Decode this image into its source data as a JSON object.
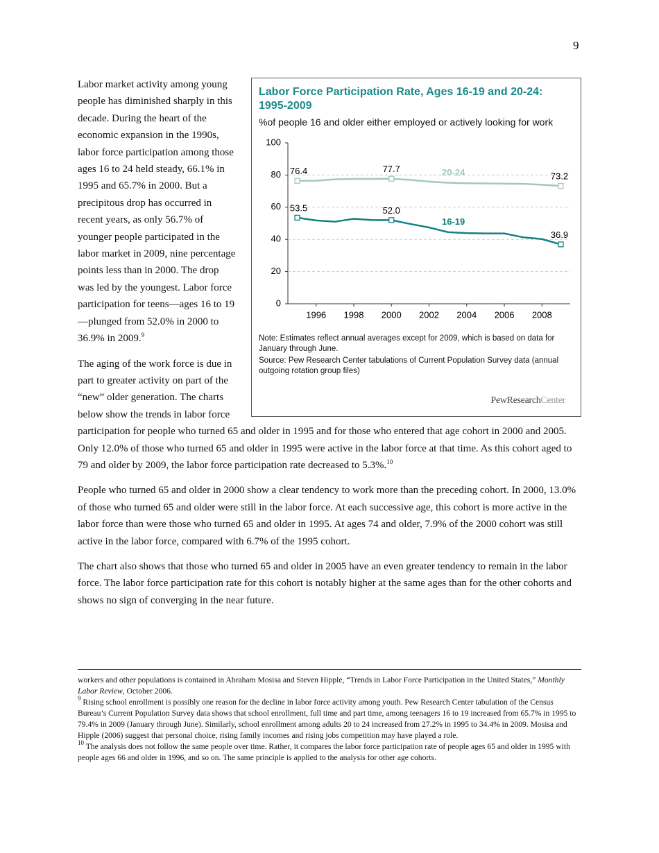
{
  "page_number": "9",
  "paragraphs": [
    {
      "text": "Labor market activity among young people has diminished sharply in this decade. During the heart of the economic expansion in the 1990s, labor force participation among those ages 16 to 24 held steady, 66.1% in 1995 and 65.7% in 2000. But a precipitous drop has occurred in recent years, as only 56.7% of younger people participated in the labor market in 2009, nine percentage points less than in 2000. The drop was led by the youngest. Labor force participation for teens—ages 16 to 19—plunged from 52.0% in 2000 to 36.9% in 2009.",
      "note": "9"
    },
    {
      "text": "The aging of the work force is due in part to greater activity on part of the “new” older generation. The charts below show the trends in labor force participation for people who turned 65 and older in 1995 and for those who entered that age cohort in 2000 and 2005. Only 12.0% of those who turned 65 and older in 1995 were active in the labor force at that time. As this cohort aged to 79 and older by 2009, the labor force participation rate decreased to 5.3%.",
      "note": "10"
    },
    {
      "text": "People who turned 65 and older in 2000 show a clear tendency to work more than the preceding cohort. In 2000, 13.0% of those who turned 65 and older were still in the labor force. At each successive age, this cohort is more active in the labor force than were those who turned 65 and older in 1995. At ages 74 and older, 7.9% of the 2000 cohort was still active in the labor force, compared with 6.7% of the 1995 cohort."
    },
    {
      "text": "The chart also shows that those who turned 65 and older in 2005 have an even greater tendency to remain in the labor force. The labor force participation rate for this cohort is notably higher at the same ages than for the other cohorts and shows no sign of converging in the near future."
    }
  ],
  "chart_data": {
    "type": "line",
    "title": "Labor Force Participation Rate, Ages 16-19 and 20-24: 1995-2009",
    "subtitle": "%of people 16 and older either employed or actively looking for work",
    "x": [
      1995,
      1996,
      1997,
      1998,
      1999,
      2000,
      2001,
      2002,
      2003,
      2004,
      2005,
      2006,
      2007,
      2008,
      2009
    ],
    "series": [
      {
        "name": "20-24",
        "color": "#a3c9b4",
        "values": [
          76.4,
          76.5,
          77.3,
          77.6,
          77.6,
          77.7,
          77.0,
          75.9,
          75.2,
          74.9,
          74.8,
          74.6,
          74.5,
          74.0,
          73.2
        ],
        "value_labels": [
          "76.4",
          null,
          null,
          null,
          null,
          "77.7",
          null,
          null,
          null,
          null,
          null,
          null,
          null,
          null,
          "73.2"
        ]
      },
      {
        "name": "16-19",
        "color": "#148080",
        "values": [
          53.5,
          51.8,
          51.0,
          52.8,
          52.0,
          52.0,
          49.6,
          47.4,
          44.5,
          43.9,
          43.7,
          43.7,
          41.3,
          40.2,
          36.9
        ],
        "value_labels": [
          "53.5",
          null,
          null,
          null,
          null,
          "52.0",
          null,
          null,
          null,
          null,
          null,
          null,
          null,
          null,
          "36.9"
        ]
      }
    ],
    "xlim": [
      1994.5,
      2009.5
    ],
    "xticks": [
      1996,
      1998,
      2000,
      2002,
      2004,
      2006,
      2008
    ],
    "ylim": [
      0,
      100
    ],
    "yticks": [
      0,
      20,
      40,
      60,
      80,
      100
    ],
    "grid": true,
    "note": "Note: Estimates reflect annual averages except for 2009, which is based on data for January through June.",
    "source": "Source: Pew Research Center tabulations of Current Population Survey data (annual outgoing rotation group files)",
    "logo": {
      "primary": "PewResearch",
      "secondary": "Center"
    }
  },
  "footnotes": [
    {
      "text": "workers and other populations is contained in Abraham Mosisa and Steven Hipple, “Trends in Labor Force Participation in the United States,”",
      "italic": "Monthly Labor Review",
      "text_after": ", October 2006."
    },
    {
      "number": "9",
      "text": "Rising school enrollment is possibly one reason for the decline in labor force activity among youth. Pew Research Center tabulation of the Census Bureau’s Current Population Survey data shows that school enrollment, full time and part time, among teenagers 16 to 19 increased from 65.7% in 1995 to 79.4% in 2009 (January through June). Similarly, school enrollment among adults 20 to 24 increased from 27.2% in 1995 to 34.4% in 2009. Mosisa and Hipple (2006) suggest that personal choice, rising family incomes and rising jobs competition may have played a role."
    },
    {
      "number": "10",
      "text": "The analysis does not follow the same people over time. Rather, it compares the labor force participation rate of people ages 65 and older in 1995 with people ages 66 and older in 1996, and so on. The same principle is applied to the analysis for other age cohorts."
    }
  ]
}
